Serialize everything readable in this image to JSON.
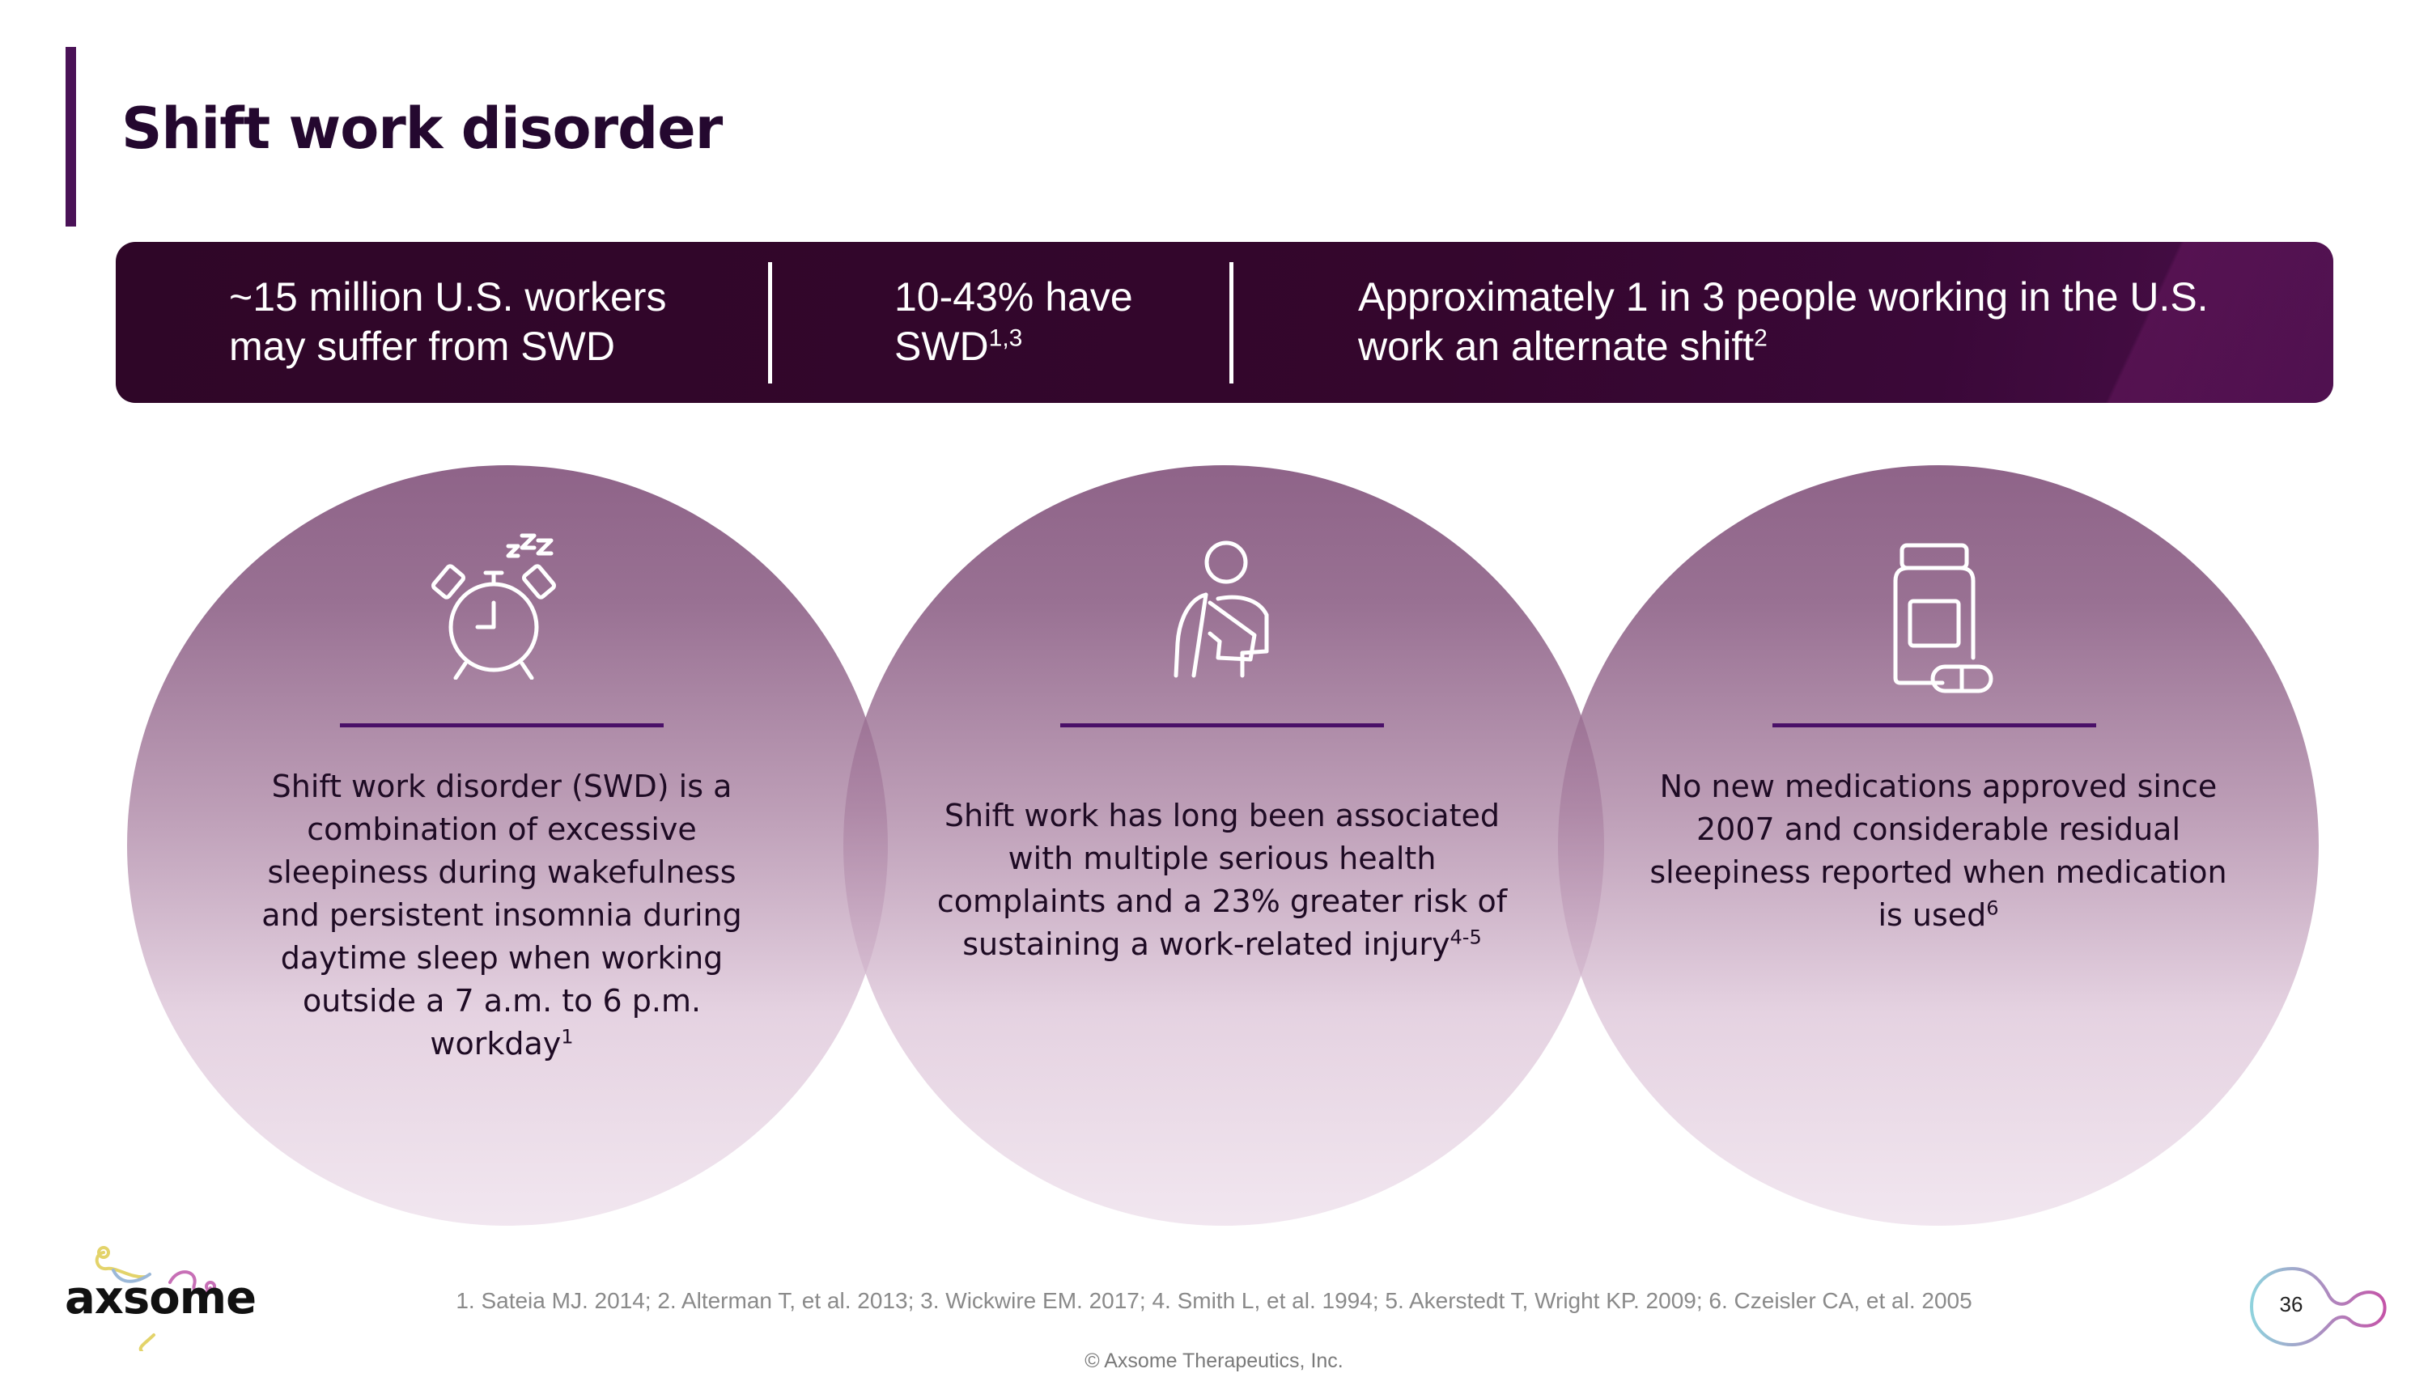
{
  "slide": {
    "title": "Shift work disorder",
    "page_number": "36"
  },
  "banner": {
    "stat1_line1": "~15 million U.S. workers",
    "stat1_line2": "may suffer from SWD",
    "stat2_line1": "10-43% have",
    "stat2_line2": "SWD",
    "stat2_sup": "1,3",
    "stat3_line1": "Approximately 1 in 3 people working in the U.S.",
    "stat3_line2": "work an alternate shift",
    "stat3_sup": "2"
  },
  "circles": [
    {
      "icon": "alarm-clock-sleep-icon",
      "lines": [
        "Shift work disorder (SWD) is a",
        "combination of excessive",
        "sleepiness during wakefulness",
        "and persistent insomnia during",
        "daytime sleep when working",
        "outside a 7 a.m. to 6 p.m.",
        "workday"
      ],
      "sup": "1"
    },
    {
      "icon": "injured-arm-sling-icon",
      "lines": [
        "Shift work has long been associated",
        "with multiple serious health",
        "complaints and a 23% greater risk of",
        "sustaining a work-related injury"
      ],
      "sup": "4-5"
    },
    {
      "icon": "pill-bottle-icon",
      "lines": [
        "No new medications approved since",
        "2007 and considerable residual",
        "sleepiness reported when medication",
        "is used"
      ],
      "sup": "6"
    }
  ],
  "footnote": "1. Sateia MJ. 2014; 2. Alterman T, et al. 2013; 3. Wickwire EM. 2017; 4. Smith L, et al. 1994; 5. Akerstedt T, Wright KP. 2009; 6. Czeisler CA, et al. 2005",
  "copyright": "© Axsome Therapeutics, Inc.",
  "logo_text": "axsome",
  "colors": {
    "accent": "#4a1257",
    "banner": "#34062d",
    "circle_top": "#7f4e78",
    "rule": "#4a1068"
  }
}
